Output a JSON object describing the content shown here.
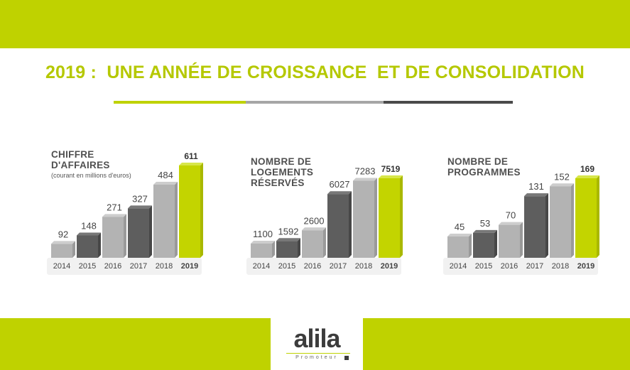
{
  "header": {
    "title": "2019 :  UNE ANNÉE DE CROISSANCE  ET DE CONSOLIDATION"
  },
  "colors": {
    "brand_green": "#bfd200",
    "title_green": "#b5c800",
    "bar_dark": "#5e5e5e",
    "bar_light": "#b3b3b3",
    "bar_highlight": "#c3d400"
  },
  "logo": {
    "word": "alila",
    "sub": "Promoteur"
  },
  "chart_data": [
    {
      "type": "bar",
      "title": "CHIFFRE D'AFFAIRES",
      "title_lines": [
        "CHIFFRE",
        "D'AFFAIRES"
      ],
      "subtitle": "(courant en millions d'euros)",
      "categories": [
        "2014",
        "2015",
        "2016",
        "2017",
        "2018",
        "2019"
      ],
      "values": [
        92,
        148,
        271,
        327,
        484,
        611
      ],
      "value_labels": [
        "92",
        "148",
        "271",
        "327",
        "484",
        "611"
      ],
      "ylim": [
        0,
        611
      ],
      "highlight_index": 5,
      "grid": false
    },
    {
      "type": "bar",
      "title": "NOMBRE DE LOGEMENTS RÉSERVÉS",
      "title_lines": [
        "NOMBRE DE",
        "LOGEMENTS",
        "RÉSERVÉS"
      ],
      "subtitle": "",
      "categories": [
        "2014",
        "2015",
        "2016",
        "2017",
        "2018",
        "2019"
      ],
      "values": [
        1100,
        1592,
        2600,
        6027,
        7283,
        7519
      ],
      "value_labels": [
        "1100",
        "1592",
        "2600",
        "6027",
        "7283",
        "7519"
      ],
      "ylim": [
        0,
        7519
      ],
      "highlight_index": 5,
      "grid": false
    },
    {
      "type": "bar",
      "title": "NOMBRE DE PROGRAMMES",
      "title_lines": [
        "NOMBRE DE",
        "PROGRAMMES"
      ],
      "subtitle": "",
      "categories": [
        "2014",
        "2015",
        "2016",
        "2017",
        "2018",
        "2019"
      ],
      "values": [
        45,
        53,
        70,
        131,
        152,
        169
      ],
      "value_labels": [
        "45",
        "53",
        "70",
        "131",
        "152",
        "169"
      ],
      "ylim": [
        0,
        169
      ],
      "highlight_index": 5,
      "grid": false
    }
  ]
}
